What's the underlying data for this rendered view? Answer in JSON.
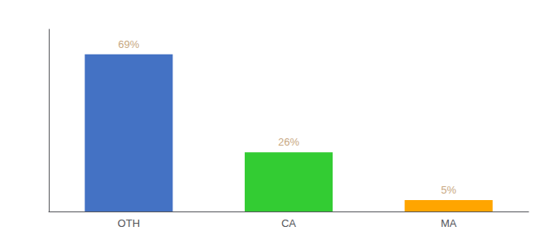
{
  "chart_data": {
    "type": "bar",
    "categories": [
      "OTH",
      "CA",
      "MA"
    ],
    "values": [
      69,
      26,
      5
    ],
    "value_labels": [
      "69%",
      "26%",
      "5%"
    ],
    "colors": [
      "#4472C4",
      "#33CC33",
      "#FFA500"
    ],
    "ylim": [
      0,
      80
    ],
    "yticks": [],
    "tick_labels": "x",
    "data_labels": true,
    "grid": false
  }
}
